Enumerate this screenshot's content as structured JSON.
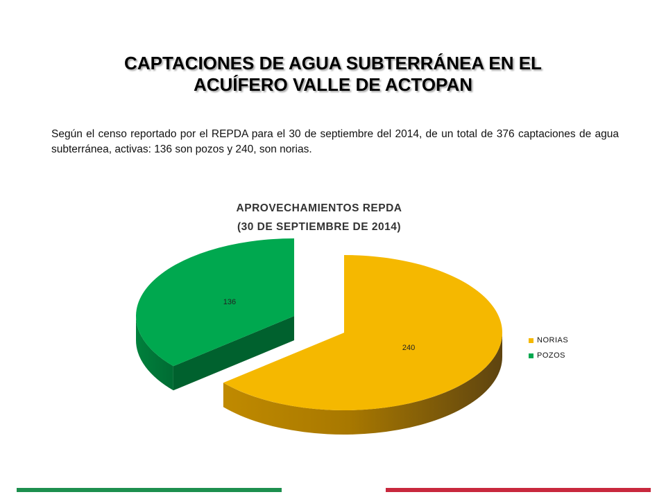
{
  "slide": {
    "title_line1": "CAPTACIONES DE AGUA SUBTERRÁNEA EN EL",
    "title_line2": "ACUÍFERO VALLE DE ACTOPAN",
    "intro": "Según el censo reportado por el REPDA para el 30 de septiembre del 2014, de un total de 376 captaciones de agua subterránea, activas:  136 son pozos y 240, son norias."
  },
  "chart_data": {
    "type": "pie",
    "title_line1": "APROVECHAMIENTOS REPDA",
    "title_line2": "(30 DE SEPTIEMBRE DE 2014)",
    "categories": [
      "NORIAS",
      "POZOS"
    ],
    "values": [
      240,
      136
    ],
    "data_labels": [
      "240",
      "136"
    ],
    "colors": [
      "#f5b800",
      "#00a84f"
    ],
    "exploded": true,
    "three_d": true,
    "legend_position": "right"
  },
  "footer": {
    "left_bar_color": "#1d8f4e",
    "right_bar_color": "#c8283d"
  }
}
